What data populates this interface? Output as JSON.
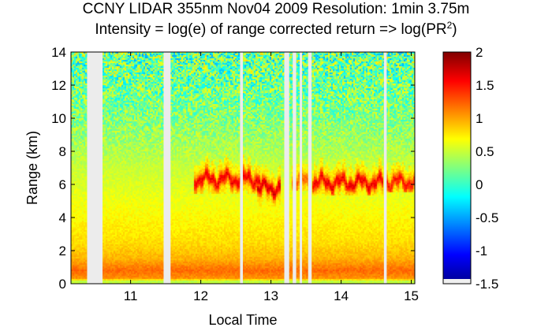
{
  "chart_data": {
    "type": "heatmap",
    "title": "CCNY LIDAR 355nm Nov04 2009 Resolution: 1min 3.75m",
    "subtitle_prefix": "Intensity = log(e) of range corrected return => log(PR",
    "subtitle_sup": "2",
    "subtitle_suffix": ")",
    "xlabel": "Local Time",
    "ylabel": "Range (km)",
    "xlim": [
      10.15,
      15.05
    ],
    "ylim": [
      0,
      14
    ],
    "xticks": [
      11,
      12,
      13,
      14,
      15
    ],
    "yticks": [
      0,
      2,
      4,
      6,
      8,
      10,
      12,
      14
    ],
    "colorbar": {
      "colormap": "jet",
      "clim": [
        -1.5,
        2
      ],
      "ticks": [
        -1.5,
        -1,
        -0.5,
        0,
        0.5,
        1,
        1.5,
        2
      ]
    },
    "data_gaps_local_time": [
      [
        10.38,
        10.6
      ],
      [
        11.47,
        11.57
      ],
      [
        12.56,
        12.6
      ],
      [
        13.19,
        13.26
      ],
      [
        13.31,
        13.36
      ],
      [
        13.41,
        13.44
      ],
      [
        13.53,
        13.58
      ],
      [
        14.61,
        14.65
      ]
    ],
    "background_intensity_by_range": [
      {
        "range_km": 0.0,
        "value": 0.5
      },
      {
        "range_km": 0.15,
        "value": 0.45
      },
      {
        "range_km": 0.3,
        "value": 1.05
      },
      {
        "range_km": 0.8,
        "value": 1.2
      },
      {
        "range_km": 1.5,
        "value": 0.95
      },
      {
        "range_km": 2.5,
        "value": 0.8
      },
      {
        "range_km": 4.0,
        "value": 0.7
      },
      {
        "range_km": 5.5,
        "value": 0.6
      },
      {
        "range_km": 7.0,
        "value": 0.5
      },
      {
        "range_km": 8.0,
        "value": 0.42
      },
      {
        "range_km": 9.5,
        "value": 0.3
      },
      {
        "range_km": 11.0,
        "value": 0.22
      },
      {
        "range_km": 14.0,
        "value": 0.15
      }
    ],
    "cloud_layers": [
      {
        "time_start": 11.9,
        "time_end": 12.85,
        "base_km": 5.4,
        "top_km": 8.0,
        "peak_value": 1.6
      },
      {
        "time_start": 12.8,
        "time_end": 13.15,
        "base_km": 4.7,
        "top_km": 7.8,
        "peak_value": 1.7
      },
      {
        "time_start": 13.3,
        "time_end": 13.55,
        "base_km": 5.6,
        "top_km": 7.2,
        "peak_value": 1.2
      },
      {
        "time_start": 13.6,
        "time_end": 14.6,
        "base_km": 5.3,
        "top_km": 7.6,
        "peak_value": 1.6
      },
      {
        "time_start": 14.65,
        "time_end": 15.05,
        "base_km": 5.5,
        "top_km": 7.3,
        "peak_value": 1.5
      }
    ]
  }
}
